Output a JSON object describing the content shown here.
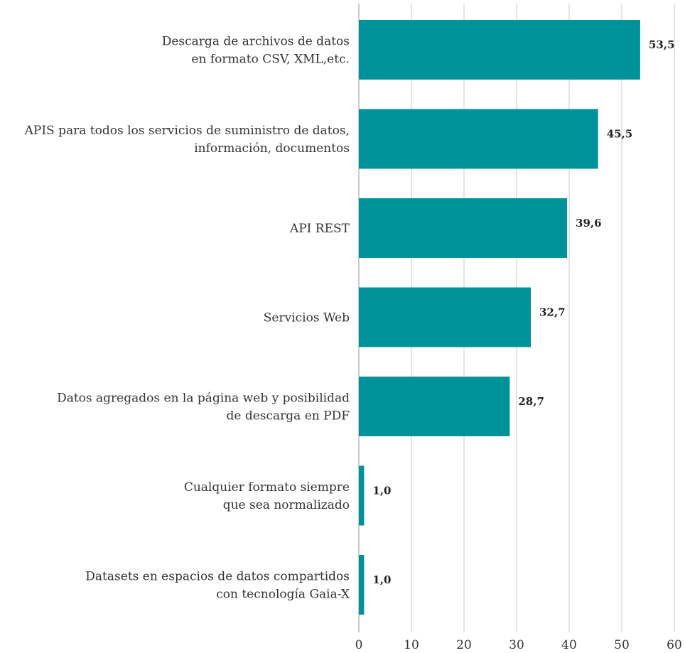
{
  "chart_data": {
    "type": "bar",
    "orientation": "horizontal",
    "categories": [
      [
        "Descarga de archivos de datos",
        "en formato CSV, XML,etc."
      ],
      [
        "APIS para todos los servicios de suministro de datos,",
        "información, documentos"
      ],
      [
        "API REST"
      ],
      [
        "Servicios Web"
      ],
      [
        "Datos agregados en la página web y posibilidad",
        "de descarga en PDF"
      ],
      [
        "Cualquier formato siempre",
        "que sea normalizado"
      ],
      [
        "Datasets en espacios de datos compartidos",
        "con tecnología Gaia-X"
      ]
    ],
    "values": [
      53.5,
      45.5,
      39.6,
      32.7,
      28.7,
      1.0,
      1.0
    ],
    "value_labels": [
      "53,5",
      "45,5",
      "39,6",
      "32,7",
      "28,7",
      "1,0",
      "1,0"
    ],
    "xlim": [
      0,
      60
    ],
    "x_ticks": [
      0,
      10,
      20,
      30,
      40,
      50,
      60
    ],
    "x_tick_labels": [
      "0",
      "10",
      "20",
      "30",
      "40",
      "50",
      "60"
    ],
    "grid": true,
    "bar_color": "#00929b"
  }
}
